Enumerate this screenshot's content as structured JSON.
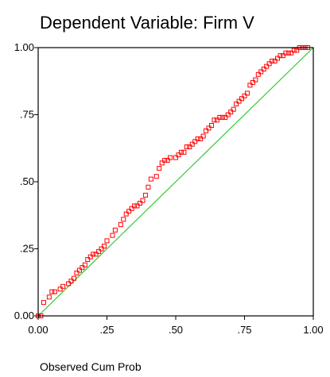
{
  "chart_data": {
    "type": "scatter",
    "title": "Dependent Variable: Firm V",
    "xlabel": "Observed Cum Prob",
    "ylabel": "",
    "xlim": [
      0,
      1
    ],
    "ylim": [
      0,
      1
    ],
    "x_ticks": [
      "0.00",
      ".25",
      ".50",
      ".75",
      "1.00"
    ],
    "y_ticks": [
      "0.00",
      ".25",
      ".50",
      ".75",
      "1.00"
    ],
    "grid": false,
    "reference_line": {
      "from": [
        0,
        0
      ],
      "to": [
        1,
        1
      ],
      "color": "#33cc33"
    },
    "marker": {
      "shape": "open-square",
      "color": "#ff0000"
    },
    "series": [
      {
        "x": [
          0.0,
          0.01,
          0.02,
          0.04,
          0.05,
          0.06,
          0.08,
          0.09,
          0.11,
          0.12,
          0.13,
          0.14,
          0.15,
          0.16,
          0.17,
          0.18,
          0.19,
          0.2,
          0.21,
          0.22,
          0.23,
          0.24,
          0.25,
          0.27,
          0.28,
          0.3,
          0.31,
          0.32,
          0.33,
          0.34,
          0.35,
          0.36,
          0.37,
          0.38,
          0.39,
          0.4,
          0.41,
          0.43,
          0.44,
          0.45,
          0.46,
          0.47,
          0.48,
          0.5,
          0.51,
          0.52,
          0.53,
          0.54,
          0.55,
          0.56,
          0.57,
          0.58,
          0.59,
          0.6,
          0.61,
          0.62,
          0.63,
          0.64,
          0.65,
          0.66,
          0.67,
          0.68,
          0.69,
          0.7,
          0.71,
          0.72,
          0.73,
          0.74,
          0.75,
          0.76,
          0.77,
          0.78,
          0.79,
          0.8,
          0.81,
          0.82,
          0.83,
          0.84,
          0.85,
          0.86,
          0.87,
          0.88,
          0.89,
          0.9,
          0.91,
          0.92,
          0.93,
          0.94,
          0.95,
          0.96,
          0.97,
          0.98
        ],
        "y": [
          0.0,
          0.0,
          0.05,
          0.07,
          0.09,
          0.09,
          0.1,
          0.11,
          0.12,
          0.13,
          0.14,
          0.16,
          0.17,
          0.18,
          0.19,
          0.21,
          0.22,
          0.23,
          0.23,
          0.24,
          0.25,
          0.26,
          0.28,
          0.3,
          0.32,
          0.34,
          0.36,
          0.38,
          0.39,
          0.4,
          0.41,
          0.41,
          0.42,
          0.43,
          0.45,
          0.48,
          0.51,
          0.52,
          0.55,
          0.57,
          0.58,
          0.58,
          0.59,
          0.59,
          0.6,
          0.61,
          0.61,
          0.63,
          0.63,
          0.64,
          0.65,
          0.66,
          0.66,
          0.67,
          0.69,
          0.7,
          0.71,
          0.73,
          0.73,
          0.74,
          0.74,
          0.74,
          0.75,
          0.76,
          0.77,
          0.79,
          0.8,
          0.81,
          0.82,
          0.83,
          0.86,
          0.87,
          0.88,
          0.9,
          0.91,
          0.92,
          0.93,
          0.94,
          0.95,
          0.95,
          0.96,
          0.97,
          0.97,
          0.98,
          0.98,
          0.98,
          0.99,
          0.99,
          1.0,
          1.0,
          1.0,
          1.0
        ]
      }
    ]
  }
}
